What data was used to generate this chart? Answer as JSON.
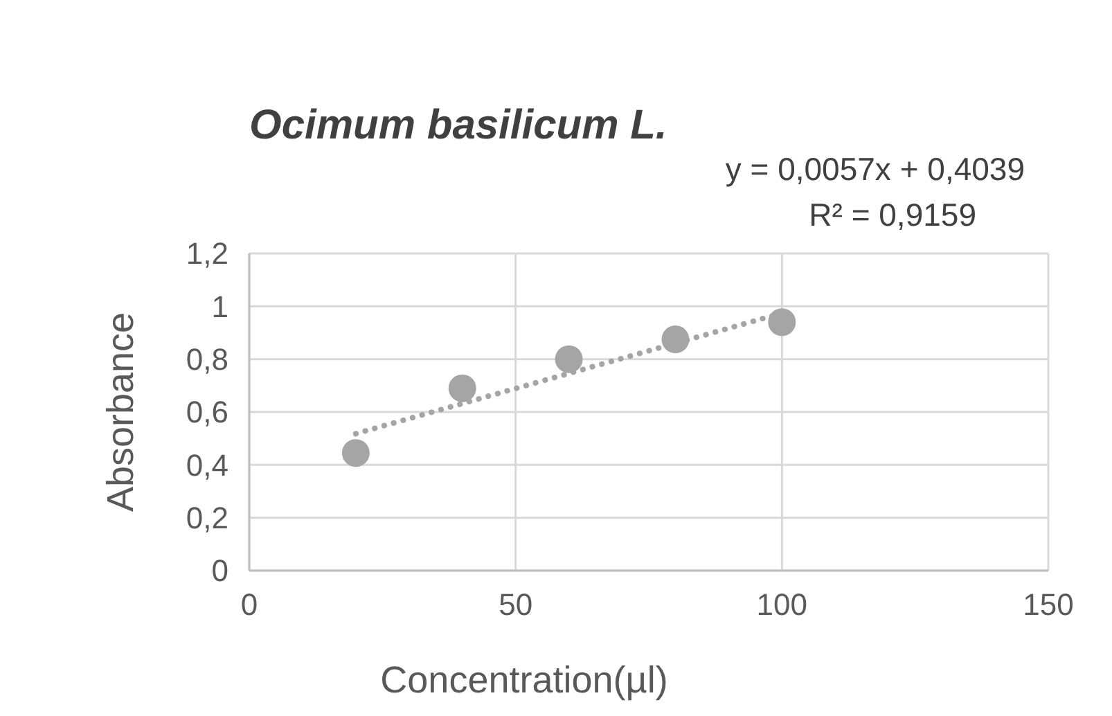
{
  "chart_data": {
    "type": "scatter",
    "title": "Ocimum basilicum L.",
    "xlabel": "Concentration(µl)",
    "ylabel": "Absorbance",
    "annotations": [
      "y = 0,0057x + 0,4039",
      "R² = 0,9159"
    ],
    "series": [
      {
        "color": "#a5a5a5",
        "x": [
          20,
          40,
          60,
          80,
          100
        ],
        "values": [
          0.445,
          0.69,
          0.8,
          0.875,
          0.94
        ],
        "marker": "circle"
      },
      {
        "type": "line",
        "color": "#a5a5a5",
        "x": [
          20,
          100
        ],
        "values": [
          0.518,
          0.974
        ],
        "marker": "none",
        "line_style": "dotted"
      }
    ],
    "xlim": [
      0,
      150
    ],
    "xticks": [
      0,
      50,
      100,
      150
    ],
    "ylim": [
      0,
      1.2
    ],
    "yticks": [
      {
        "value": 0,
        "label": "0"
      },
      {
        "value": 0.2,
        "label": "0,2"
      },
      {
        "value": 0.4,
        "label": "0,4"
      },
      {
        "value": 0.6,
        "label": "0,6"
      },
      {
        "value": 0.8,
        "label": "0,8"
      },
      {
        "value": 1,
        "label": "1"
      },
      {
        "value": 1.2,
        "label": "1,2"
      }
    ],
    "grid": true
  }
}
